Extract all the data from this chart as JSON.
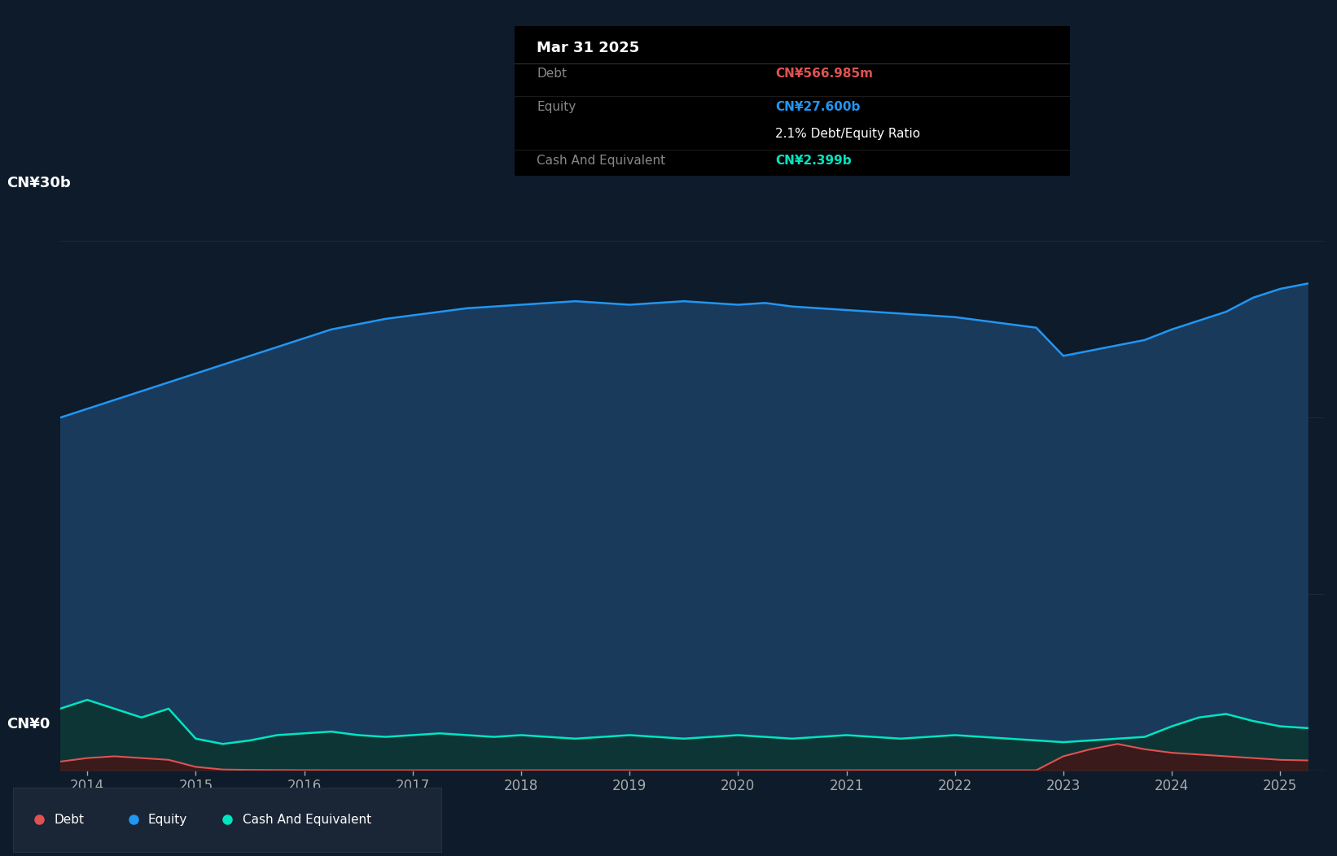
{
  "background_color": "#0d1b2a",
  "plot_bg_color": "#0d1b2a",
  "ylim": [
    0,
    33000000000
  ],
  "tooltip_title": "Mar 31 2025",
  "tooltip_debt_label": "Debt",
  "tooltip_debt_value": "CN¥566.985m",
  "tooltip_equity_label": "Equity",
  "tooltip_equity_value": "CN¥27.600b",
  "tooltip_ratio": "2.1% Debt/Equity Ratio",
  "tooltip_cash_label": "Cash And Equivalent",
  "tooltip_cash_value": "CN¥2.399b",
  "equity_color": "#2196f3",
  "equity_fill": "#1a3a5c",
  "debt_color": "#e05252",
  "debt_fill": "#3a1a1a",
  "cash_color": "#00e5c0",
  "cash_fill": "#0d3535",
  "grid_color": "#2a3a4a",
  "text_color": "#aaaaaa",
  "equity_data_x": [
    2013.75,
    2014.0,
    2014.25,
    2014.5,
    2014.75,
    2015.0,
    2015.25,
    2015.5,
    2015.75,
    2016.0,
    2016.25,
    2016.5,
    2016.75,
    2017.0,
    2017.25,
    2017.5,
    2017.75,
    2018.0,
    2018.25,
    2018.5,
    2018.75,
    2019.0,
    2019.25,
    2019.5,
    2019.75,
    2020.0,
    2020.25,
    2020.5,
    2020.75,
    2021.0,
    2021.25,
    2021.5,
    2021.75,
    2022.0,
    2022.25,
    2022.5,
    2022.75,
    2023.0,
    2023.25,
    2023.5,
    2023.75,
    2024.0,
    2024.25,
    2024.5,
    2024.75,
    2025.0,
    2025.25
  ],
  "equity_data_y": [
    20000000000,
    20500000000,
    21000000000,
    21500000000,
    22000000000,
    22500000000,
    23000000000,
    23500000000,
    24000000000,
    24500000000,
    25000000000,
    25300000000,
    25600000000,
    25800000000,
    26000000000,
    26200000000,
    26300000000,
    26400000000,
    26500000000,
    26600000000,
    26500000000,
    26400000000,
    26500000000,
    26600000000,
    26500000000,
    26400000000,
    26500000000,
    26300000000,
    26200000000,
    26100000000,
    26000000000,
    25900000000,
    25800000000,
    25700000000,
    25500000000,
    25300000000,
    25100000000,
    23500000000,
    23800000000,
    24100000000,
    24400000000,
    25000000000,
    25500000000,
    26000000000,
    26800000000,
    27300000000,
    27600000000
  ],
  "debt_data_x": [
    2013.75,
    2014.0,
    2014.25,
    2014.5,
    2014.75,
    2015.0,
    2015.25,
    2015.5,
    2015.75,
    2016.0,
    2016.25,
    2016.5,
    2016.75,
    2017.0,
    2017.25,
    2017.5,
    2017.75,
    2018.0,
    2018.25,
    2018.5,
    2018.75,
    2019.0,
    2019.25,
    2019.5,
    2019.75,
    2020.0,
    2020.25,
    2020.5,
    2020.75,
    2021.0,
    2021.25,
    2021.5,
    2021.75,
    2022.0,
    2022.25,
    2022.5,
    2022.75,
    2023.0,
    2023.25,
    2023.5,
    2023.75,
    2024.0,
    2024.25,
    2024.5,
    2024.75,
    2025.0,
    2025.25
  ],
  "debt_data_y": [
    500000000,
    700000000,
    800000000,
    700000000,
    600000000,
    200000000,
    50000000,
    30000000,
    20000000,
    15000000,
    10000000,
    10000000,
    10000000,
    10000000,
    10000000,
    10000000,
    10000000,
    10000000,
    10000000,
    10000000,
    10000000,
    10000000,
    10000000,
    10000000,
    10000000,
    10000000,
    10000000,
    10000000,
    10000000,
    10000000,
    10000000,
    10000000,
    10000000,
    10000000,
    10000000,
    10000000,
    10000000,
    800000000,
    1200000000,
    1500000000,
    1200000000,
    1000000000,
    900000000,
    800000000,
    700000000,
    600000000,
    566985000
  ],
  "cash_data_x": [
    2013.75,
    2014.0,
    2014.25,
    2014.5,
    2014.75,
    2015.0,
    2015.25,
    2015.5,
    2015.75,
    2016.0,
    2016.25,
    2016.5,
    2016.75,
    2017.0,
    2017.25,
    2017.5,
    2017.75,
    2018.0,
    2018.25,
    2018.5,
    2018.75,
    2019.0,
    2019.25,
    2019.5,
    2019.75,
    2020.0,
    2020.25,
    2020.5,
    2020.75,
    2021.0,
    2021.25,
    2021.5,
    2021.75,
    2022.0,
    2022.25,
    2022.5,
    2022.75,
    2023.0,
    2023.25,
    2023.5,
    2023.75,
    2024.0,
    2024.25,
    2024.5,
    2024.75,
    2025.0,
    2025.25
  ],
  "cash_data_y": [
    3500000000,
    4000000000,
    3500000000,
    3000000000,
    3500000000,
    1800000000,
    1500000000,
    1700000000,
    2000000000,
    2100000000,
    2200000000,
    2000000000,
    1900000000,
    2000000000,
    2100000000,
    2000000000,
    1900000000,
    2000000000,
    1900000000,
    1800000000,
    1900000000,
    2000000000,
    1900000000,
    1800000000,
    1900000000,
    2000000000,
    1900000000,
    1800000000,
    1900000000,
    2000000000,
    1900000000,
    1800000000,
    1900000000,
    2000000000,
    1900000000,
    1800000000,
    1700000000,
    1600000000,
    1700000000,
    1800000000,
    1900000000,
    2500000000,
    3000000000,
    3200000000,
    2800000000,
    2500000000,
    2399000000
  ]
}
